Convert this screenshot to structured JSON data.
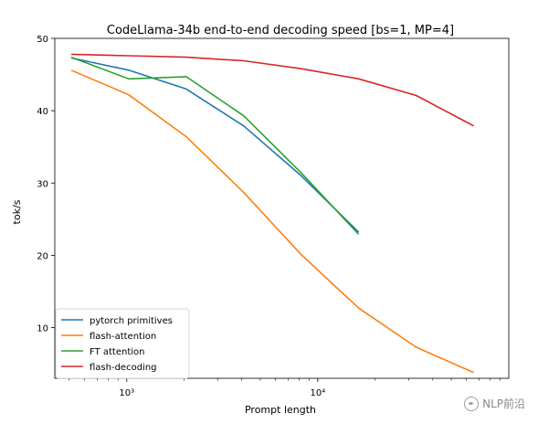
{
  "chart_data": {
    "type": "line",
    "title": "CodeLlama-34b end-to-end decoding speed [bs=1, MP=4]",
    "xlabel": "Prompt length",
    "ylabel": "tok/s",
    "xscale": "log",
    "xlim": [
      420,
      100000
    ],
    "ylim": [
      3,
      50
    ],
    "x_ticks": [
      {
        "value": 1000,
        "label": "10³"
      },
      {
        "value": 10000,
        "label": "10⁴"
      }
    ],
    "y_ticks": [
      10,
      20,
      30,
      40,
      50
    ],
    "grid": false,
    "legend_position": "lower-left",
    "series": [
      {
        "name": "pytorch primitives",
        "color": "#1f77b4",
        "x": [
          512,
          1024,
          2048,
          4096,
          8192,
          16384
        ],
        "y": [
          47.3,
          45.6,
          43.0,
          37.9,
          31.0,
          23.2
        ]
      },
      {
        "name": "flash-attention",
        "color": "#ff7f0e",
        "x": [
          512,
          1024,
          2048,
          4096,
          8192,
          16384,
          32768,
          65536
        ],
        "y": [
          45.6,
          42.2,
          36.4,
          28.7,
          20.1,
          12.7,
          7.3,
          3.8
        ]
      },
      {
        "name": "FT attention",
        "color": "#2ca02c",
        "x": [
          512,
          1024,
          2048,
          4096,
          8192,
          16384
        ],
        "y": [
          47.4,
          44.4,
          44.7,
          39.3,
          31.4,
          22.9
        ]
      },
      {
        "name": "flash-decoding",
        "color": "#d62728",
        "x": [
          512,
          1024,
          2048,
          4096,
          8192,
          16384,
          32768,
          65536
        ],
        "y": [
          47.8,
          47.6,
          47.4,
          46.9,
          45.8,
          44.4,
          42.1,
          37.9
        ]
      }
    ]
  },
  "watermark": {
    "text": "NLP前沿",
    "icon": "wechat-icon"
  }
}
